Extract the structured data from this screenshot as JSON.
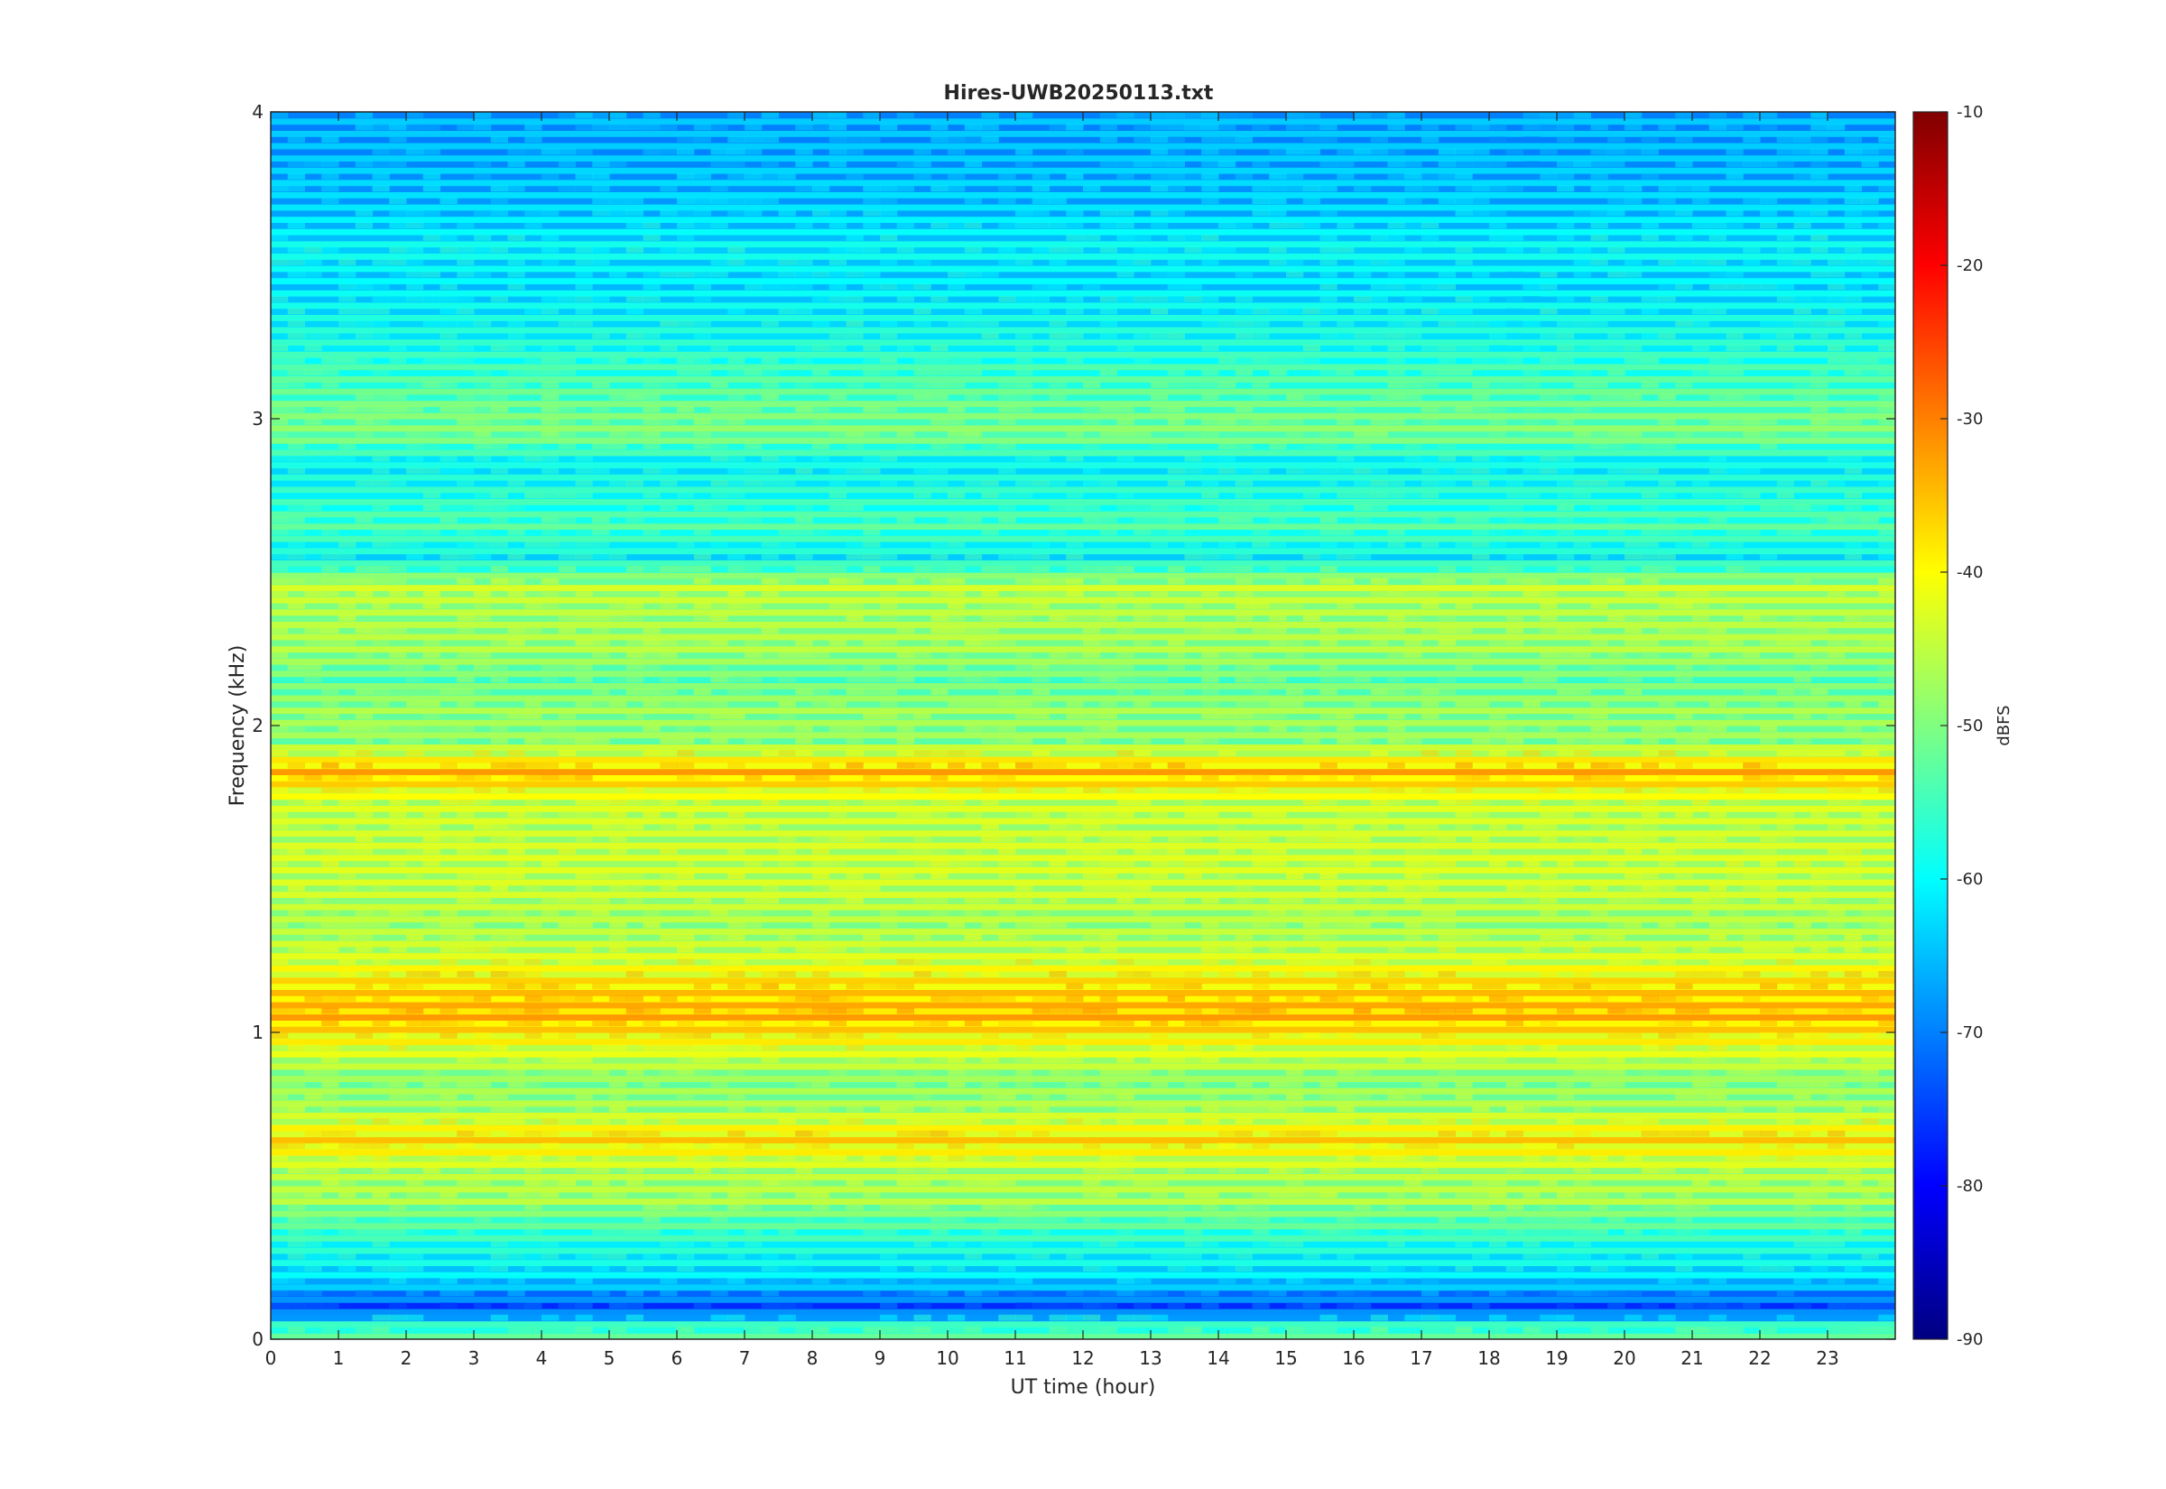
{
  "chart_data": {
    "type": "heatmap",
    "title": "Hires-UWB20250113.txt",
    "xlabel": "UT time (hour)",
    "ylabel": "Frequency (kHz)",
    "xlim": [
      0,
      24
    ],
    "ylim": [
      0,
      4
    ],
    "x_ticks": [
      0,
      1,
      2,
      3,
      4,
      5,
      6,
      7,
      8,
      9,
      10,
      11,
      12,
      13,
      14,
      15,
      16,
      17,
      18,
      19,
      20,
      21,
      22,
      23
    ],
    "y_ticks": [
      0,
      1,
      2,
      3,
      4
    ],
    "colorbar": {
      "label": "dBFS",
      "colormap": "jet",
      "clim": [
        -90,
        -10
      ],
      "ticks": [
        -90,
        -80,
        -70,
        -60,
        -50,
        -40,
        -30,
        -20,
        -10
      ]
    },
    "bands": [
      {
        "f": 0.04,
        "db": -52
      },
      {
        "f": 0.1,
        "db": -72
      },
      {
        "f": 0.2,
        "db": -60
      },
      {
        "f": 0.3,
        "db": -56
      },
      {
        "f": 0.4,
        "db": -50
      },
      {
        "f": 0.45,
        "db": -45
      },
      {
        "f": 0.55,
        "db": -44
      },
      {
        "f": 0.65,
        "db": -35
      },
      {
        "f": 0.75,
        "db": -45
      },
      {
        "f": 0.85,
        "db": -47
      },
      {
        "f": 0.95,
        "db": -40
      },
      {
        "f": 1.05,
        "db": -32
      },
      {
        "f": 1.15,
        "db": -35
      },
      {
        "f": 1.25,
        "db": -42
      },
      {
        "f": 1.35,
        "db": -45
      },
      {
        "f": 1.45,
        "db": -43
      },
      {
        "f": 1.55,
        "db": -42
      },
      {
        "f": 1.65,
        "db": -43
      },
      {
        "f": 1.75,
        "db": -42
      },
      {
        "f": 1.85,
        "db": -32
      },
      {
        "f": 1.95,
        "db": -47
      },
      {
        "f": 2.05,
        "db": -46
      },
      {
        "f": 2.15,
        "db": -50
      },
      {
        "f": 2.25,
        "db": -45
      },
      {
        "f": 2.35,
        "db": -45
      },
      {
        "f": 2.45,
        "db": -43
      },
      {
        "f": 2.55,
        "db": -58
      },
      {
        "f": 2.65,
        "db": -52
      },
      {
        "f": 2.75,
        "db": -55
      },
      {
        "f": 2.85,
        "db": -58
      },
      {
        "f": 2.95,
        "db": -48
      },
      {
        "f": 3.05,
        "db": -50
      },
      {
        "f": 3.25,
        "db": -56
      },
      {
        "f": 3.45,
        "db": -60
      },
      {
        "f": 3.55,
        "db": -58
      },
      {
        "f": 3.7,
        "db": -62
      },
      {
        "f": 3.9,
        "db": -64
      }
    ]
  }
}
